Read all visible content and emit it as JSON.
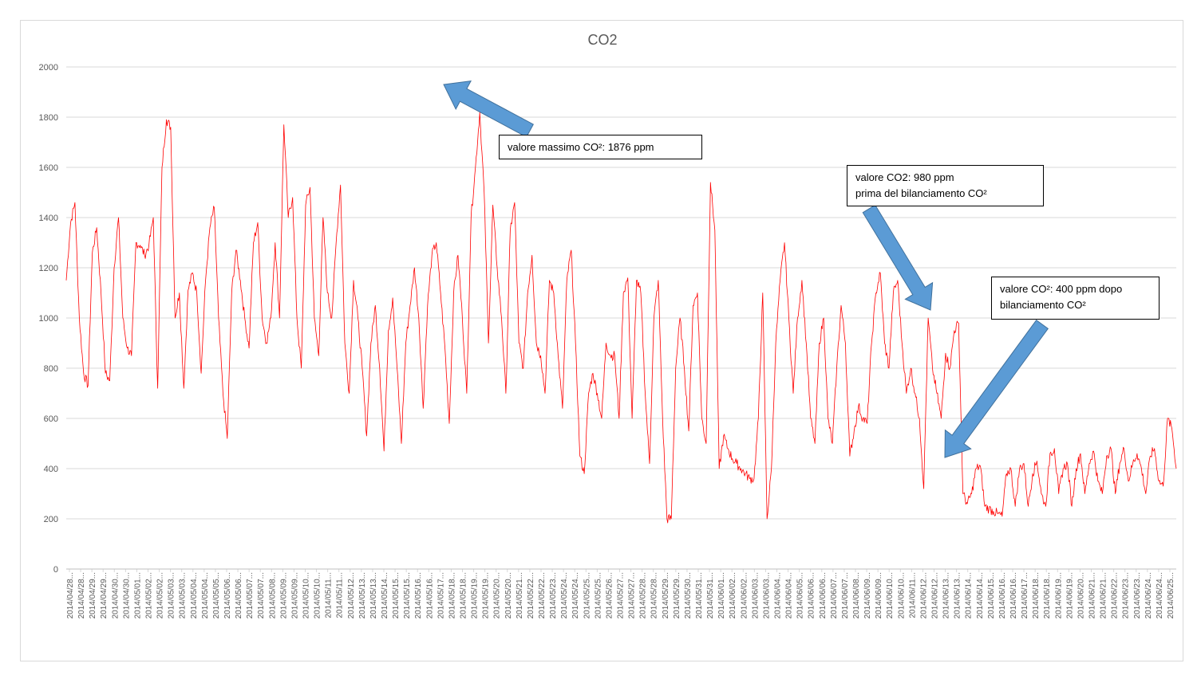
{
  "chart_data": {
    "type": "line",
    "title": "CO2",
    "xlabel": "",
    "ylabel": "",
    "ylim": [
      0,
      2000
    ],
    "yticks": [
      0,
      200,
      400,
      600,
      800,
      1000,
      1200,
      1400,
      1600,
      1800,
      2000
    ],
    "grid": true,
    "legend": "none",
    "x_tick_labels": [
      "2014/04/28...",
      "2014/04/28...",
      "2014/04/29...",
      "2014/04/29...",
      "2014/04/30...",
      "2014/04/30...",
      "2014/05/01...",
      "2014/05/02...",
      "2014/05/02...",
      "2014/05/03...",
      "2014/05/03...",
      "2014/05/04...",
      "2014/05/04...",
      "2014/05/05...",
      "2014/05/06...",
      "2014/05/06...",
      "2014/05/07...",
      "2014/05/07...",
      "2014/05/08...",
      "2014/05/09...",
      "2014/05/09...",
      "2014/05/10...",
      "2014/05/10...",
      "2014/05/11...",
      "2014/05/11...",
      "2014/05/12...",
      "2014/05/13...",
      "2014/05/13...",
      "2014/05/14...",
      "2014/05/15...",
      "2014/05/15...",
      "2014/05/16...",
      "2014/05/16...",
      "2014/05/17...",
      "2014/05/18...",
      "2014/05/18...",
      "2014/05/19...",
      "2014/05/19...",
      "2014/05/20...",
      "2014/05/20...",
      "2014/05/21...",
      "2014/05/22...",
      "2014/05/22...",
      "2014/05/23...",
      "2014/05/24...",
      "2014/05/24...",
      "2014/05/25...",
      "2014/05/25...",
      "2014/05/26...",
      "2014/05/27...",
      "2014/05/27...",
      "2014/05/28...",
      "2014/05/28...",
      "2014/05/29...",
      "2014/05/29...",
      "2014/05/30...",
      "2014/05/31...",
      "2014/05/31...",
      "2014/06/01...",
      "2014/06/02...",
      "2014/06/02...",
      "2014/06/03...",
      "2014/06/03...",
      "2014/06/04...",
      "2014/06/04...",
      "2014/06/05...",
      "2014/06/06...",
      "2014/06/06...",
      "2014/06/07...",
      "2014/06/07...",
      "2014/06/08...",
      "2014/06/09...",
      "2014/06/09...",
      "2014/06/10...",
      "2014/06/10...",
      "2014/06/11...",
      "2014/06/12...",
      "2014/06/12...",
      "2014/06/13...",
      "2014/06/13...",
      "2014/06/14...",
      "2014/06/14...",
      "2014/06/15...",
      "2014/06/16...",
      "2014/06/16...",
      "2014/06/17...",
      "2014/06/18...",
      "2014/06/18...",
      "2014/06/19...",
      "2014/06/19...",
      "2014/06/20...",
      "2014/06/21...",
      "2014/06/21...",
      "2014/06/22...",
      "2014/06/23...",
      "2014/06/23...",
      "2014/06/24...",
      "2014/06/24...",
      "2014/06/25..."
    ],
    "series": [
      {
        "color": "#ff0000",
        "points": [
          [
            0,
            1150
          ],
          [
            1,
            1380
          ],
          [
            2,
            1460
          ],
          [
            3,
            1000
          ],
          [
            4,
            780
          ],
          [
            5,
            730
          ],
          [
            6,
            1260
          ],
          [
            7,
            1360
          ],
          [
            8,
            1100
          ],
          [
            9,
            780
          ],
          [
            10,
            750
          ],
          [
            11,
            1200
          ],
          [
            12,
            1400
          ],
          [
            13,
            1000
          ],
          [
            14,
            880
          ],
          [
            15,
            850
          ],
          [
            16,
            1300
          ],
          [
            17,
            1290
          ],
          [
            18,
            1250
          ],
          [
            19,
            1290
          ],
          [
            20,
            1400
          ],
          [
            21,
            720
          ],
          [
            22,
            1600
          ],
          [
            23,
            1790
          ],
          [
            24,
            1760
          ],
          [
            25,
            1000
          ],
          [
            26,
            1100
          ],
          [
            27,
            720
          ],
          [
            28,
            1110
          ],
          [
            29,
            1180
          ],
          [
            30,
            1100
          ],
          [
            31,
            780
          ],
          [
            32,
            1150
          ],
          [
            33,
            1360
          ],
          [
            34,
            1440
          ],
          [
            35,
            1000
          ],
          [
            36,
            700
          ],
          [
            37,
            520
          ],
          [
            38,
            1100
          ],
          [
            39,
            1270
          ],
          [
            40,
            1150
          ],
          [
            41,
            1000
          ],
          [
            42,
            880
          ],
          [
            43,
            1300
          ],
          [
            44,
            1380
          ],
          [
            45,
            1000
          ],
          [
            46,
            900
          ],
          [
            47,
            1000
          ],
          [
            48,
            1300
          ],
          [
            49,
            1000
          ],
          [
            50,
            1770
          ],
          [
            51,
            1400
          ],
          [
            52,
            1480
          ],
          [
            53,
            1000
          ],
          [
            54,
            800
          ],
          [
            55,
            1450
          ],
          [
            56,
            1520
          ],
          [
            57,
            1000
          ],
          [
            58,
            850
          ],
          [
            59,
            1400
          ],
          [
            60,
            1100
          ],
          [
            61,
            1000
          ],
          [
            62,
            1300
          ],
          [
            63,
            1530
          ],
          [
            64,
            900
          ],
          [
            65,
            700
          ],
          [
            66,
            1150
          ],
          [
            67,
            1000
          ],
          [
            68,
            800
          ],
          [
            69,
            530
          ],
          [
            70,
            900
          ],
          [
            71,
            1050
          ],
          [
            72,
            800
          ],
          [
            73,
            470
          ],
          [
            74,
            950
          ],
          [
            75,
            1080
          ],
          [
            76,
            800
          ],
          [
            77,
            500
          ],
          [
            78,
            900
          ],
          [
            79,
            1050
          ],
          [
            80,
            1200
          ],
          [
            81,
            1000
          ],
          [
            82,
            640
          ],
          [
            83,
            1050
          ],
          [
            84,
            1250
          ],
          [
            85,
            1300
          ],
          [
            86,
            1100
          ],
          [
            87,
            880
          ],
          [
            88,
            580
          ],
          [
            89,
            1100
          ],
          [
            90,
            1250
          ],
          [
            91,
            1000
          ],
          [
            92,
            700
          ],
          [
            93,
            1400
          ],
          [
            94,
            1600
          ],
          [
            95,
            1820
          ],
          [
            96,
            1500
          ],
          [
            97,
            900
          ],
          [
            98,
            1450
          ],
          [
            99,
            1200
          ],
          [
            100,
            1000
          ],
          [
            101,
            700
          ],
          [
            102,
            1350
          ],
          [
            103,
            1460
          ],
          [
            104,
            900
          ],
          [
            105,
            800
          ],
          [
            106,
            1100
          ],
          [
            107,
            1250
          ],
          [
            108,
            900
          ],
          [
            109,
            850
          ],
          [
            110,
            700
          ],
          [
            111,
            1150
          ],
          [
            112,
            1100
          ],
          [
            113,
            850
          ],
          [
            114,
            640
          ],
          [
            115,
            1150
          ],
          [
            116,
            1270
          ],
          [
            117,
            900
          ],
          [
            118,
            450
          ],
          [
            119,
            380
          ],
          [
            120,
            700
          ],
          [
            121,
            780
          ],
          [
            122,
            700
          ],
          [
            123,
            600
          ],
          [
            124,
            900
          ],
          [
            125,
            850
          ],
          [
            126,
            850
          ],
          [
            127,
            600
          ],
          [
            128,
            1100
          ],
          [
            129,
            1160
          ],
          [
            130,
            600
          ],
          [
            131,
            1150
          ],
          [
            132,
            1100
          ],
          [
            133,
            700
          ],
          [
            134,
            420
          ],
          [
            135,
            1000
          ],
          [
            136,
            1150
          ],
          [
            137,
            600
          ],
          [
            138,
            200
          ],
          [
            139,
            200
          ],
          [
            140,
            800
          ],
          [
            141,
            1000
          ],
          [
            142,
            800
          ],
          [
            143,
            550
          ],
          [
            144,
            1050
          ],
          [
            145,
            1100
          ],
          [
            146,
            600
          ],
          [
            147,
            500
          ],
          [
            148,
            1540
          ],
          [
            149,
            1350
          ],
          [
            150,
            400
          ],
          [
            151,
            530
          ],
          [
            152,
            480
          ],
          [
            153,
            440
          ],
          [
            154,
            420
          ],
          [
            155,
            400
          ],
          [
            156,
            380
          ],
          [
            157,
            360
          ],
          [
            158,
            360
          ],
          [
            159,
            600
          ],
          [
            160,
            1100
          ],
          [
            161,
            200
          ],
          [
            162,
            400
          ],
          [
            163,
            900
          ],
          [
            164,
            1150
          ],
          [
            165,
            1300
          ],
          [
            166,
            1000
          ],
          [
            167,
            700
          ],
          [
            168,
            1000
          ],
          [
            169,
            1150
          ],
          [
            170,
            900
          ],
          [
            171,
            600
          ],
          [
            172,
            500
          ],
          [
            173,
            900
          ],
          [
            174,
            1000
          ],
          [
            175,
            600
          ],
          [
            176,
            500
          ],
          [
            177,
            800
          ],
          [
            178,
            1050
          ],
          [
            179,
            900
          ],
          [
            180,
            450
          ],
          [
            181,
            550
          ],
          [
            182,
            650
          ],
          [
            183,
            600
          ],
          [
            184,
            580
          ],
          [
            185,
            900
          ],
          [
            186,
            1100
          ],
          [
            187,
            1180
          ],
          [
            188,
            900
          ],
          [
            189,
            800
          ],
          [
            190,
            1100
          ],
          [
            191,
            1150
          ],
          [
            192,
            900
          ],
          [
            193,
            700
          ],
          [
            194,
            800
          ],
          [
            195,
            700
          ],
          [
            196,
            600
          ],
          [
            197,
            320
          ],
          [
            198,
            1000
          ],
          [
            199,
            800
          ],
          [
            200,
            700
          ],
          [
            201,
            600
          ],
          [
            202,
            860
          ],
          [
            203,
            800
          ],
          [
            204,
            950
          ],
          [
            205,
            980
          ],
          [
            206,
            300
          ],
          [
            207,
            260
          ],
          [
            208,
            300
          ],
          [
            209,
            400
          ],
          [
            210,
            410
          ],
          [
            211,
            250
          ],
          [
            212,
            240
          ],
          [
            213,
            230
          ],
          [
            214,
            220
          ],
          [
            215,
            210
          ],
          [
            216,
            380
          ],
          [
            217,
            400
          ],
          [
            218,
            250
          ],
          [
            219,
            400
          ],
          [
            220,
            420
          ],
          [
            221,
            250
          ],
          [
            222,
            380
          ],
          [
            223,
            430
          ],
          [
            224,
            300
          ],
          [
            225,
            250
          ],
          [
            226,
            460
          ],
          [
            227,
            480
          ],
          [
            228,
            300
          ],
          [
            229,
            400
          ],
          [
            230,
            420
          ],
          [
            231,
            250
          ],
          [
            232,
            400
          ],
          [
            233,
            460
          ],
          [
            234,
            300
          ],
          [
            235,
            420
          ],
          [
            236,
            470
          ],
          [
            237,
            350
          ],
          [
            238,
            300
          ],
          [
            239,
            450
          ],
          [
            240,
            480
          ],
          [
            241,
            300
          ],
          [
            242,
            420
          ],
          [
            243,
            480
          ],
          [
            244,
            350
          ],
          [
            245,
            420
          ],
          [
            246,
            460
          ],
          [
            247,
            400
          ],
          [
            248,
            300
          ],
          [
            249,
            450
          ],
          [
            250,
            480
          ],
          [
            251,
            350
          ],
          [
            252,
            330
          ],
          [
            253,
            600
          ],
          [
            254,
            560
          ],
          [
            255,
            400
          ]
        ]
      }
    ],
    "annotations": [
      {
        "id": "max",
        "lines": [
          "valore massimo CO²: 1876 ppm"
        ]
      },
      {
        "id": "before",
        "lines": [
          "valore CO2: 980 ppm",
          "prima del bilanciamento CO²"
        ]
      },
      {
        "id": "after",
        "lines": [
          "valore CO²: 400 ppm dopo",
          "bilanciamento CO²"
        ]
      }
    ],
    "colors": {
      "line": "#ff0000",
      "arrow_fill": "#5b9bd5",
      "arrow_stroke": "#41719c",
      "grid": "#d9d9d9",
      "axis_text": "#595959"
    }
  }
}
